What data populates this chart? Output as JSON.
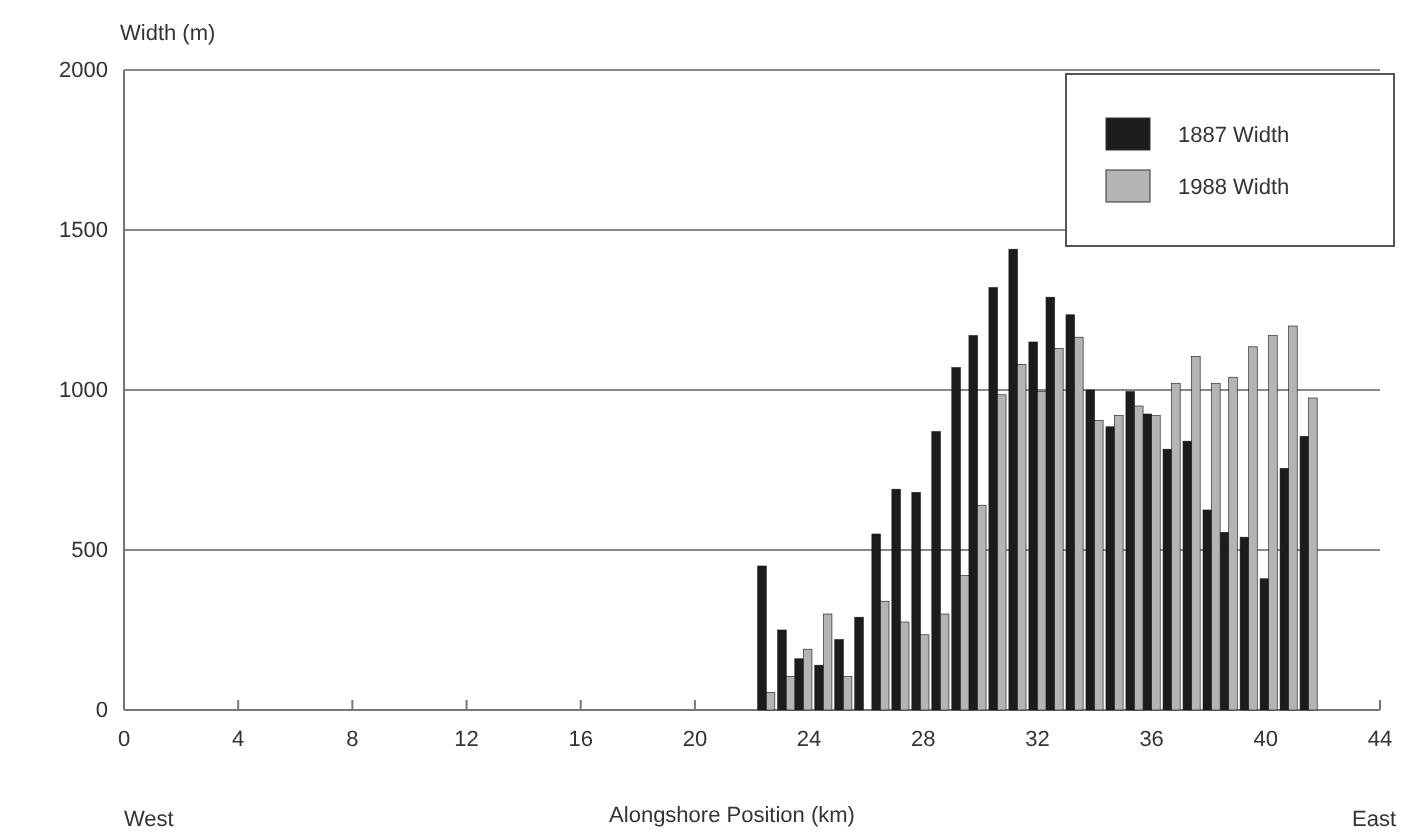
{
  "chart_data": {
    "type": "bar",
    "ylabel": "Width (m)",
    "xlabel": "Alongshore Position (km)",
    "x": [
      22.5,
      23.2,
      23.8,
      24.5,
      25.2,
      25.9,
      26.5,
      27.2,
      27.9,
      28.6,
      29.3,
      29.9,
      30.6,
      31.3,
      32.0,
      32.6,
      33.3,
      34.0,
      34.7,
      35.4,
      36.0,
      36.7,
      37.4,
      38.1,
      38.7,
      39.4,
      40.1,
      40.8,
      41.5
    ],
    "series": [
      {
        "name": "1887 Width",
        "color": "#1c1c1c",
        "values": [
          450,
          250,
          160,
          140,
          220,
          290,
          550,
          690,
          680,
          870,
          1070,
          1170,
          1320,
          1440,
          1150,
          1290,
          1235,
          1000,
          885,
          995,
          925,
          815,
          840,
          625,
          555,
          540,
          410,
          755,
          855
        ]
      },
      {
        "name": "1988 Width",
        "color": "#b4b4b4",
        "values": [
          55,
          105,
          190,
          300,
          105,
          null,
          340,
          275,
          235,
          300,
          420,
          640,
          985,
          1080,
          995,
          1130,
          1165,
          905,
          920,
          950,
          920,
          1020,
          1105,
          1020,
          1040,
          1135,
          1170,
          1200,
          975
        ]
      }
    ],
    "xlim": [
      0,
      44
    ],
    "xticks": [
      0,
      4,
      8,
      12,
      16,
      20,
      24,
      28,
      32,
      36,
      40,
      44
    ],
    "ylim": [
      0,
      2000
    ],
    "yticks": [
      0,
      500,
      1000,
      1500,
      2000
    ],
    "grid": "y",
    "legend": "top right",
    "annotations": [
      "West",
      "East"
    ]
  }
}
